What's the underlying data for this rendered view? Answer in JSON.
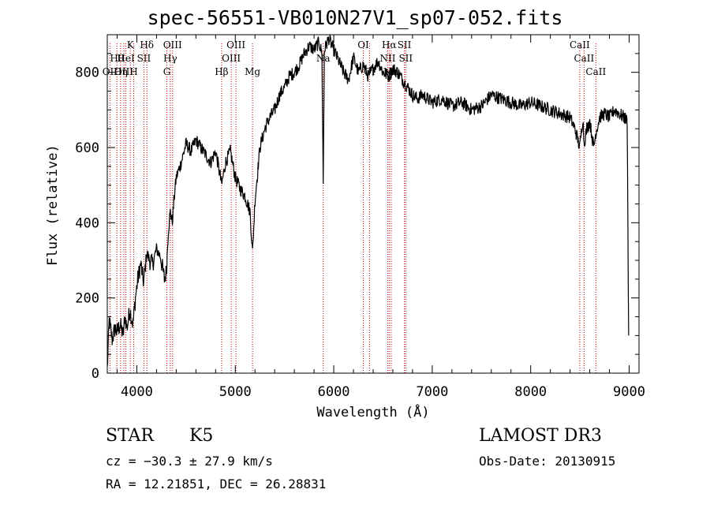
{
  "chart_data": {
    "type": "line",
    "title": "spec-56551-VB010N27V1_sp07-052.fits",
    "xlabel": "Wavelength (Å)",
    "ylabel": "Flux (relative)",
    "xlim": [
      3700,
      9100
    ],
    "ylim": [
      0,
      900
    ],
    "xticks": [
      4000,
      5000,
      6000,
      7000,
      8000,
      9000
    ],
    "yticks": [
      0,
      200,
      400,
      600,
      800
    ],
    "series": [
      {
        "name": "flux",
        "x": [
          3700,
          3720,
          3750,
          3780,
          3800,
          3830,
          3860,
          3880,
          3900,
          3930,
          3960,
          3990,
          4010,
          4040,
          4070,
          4100,
          4130,
          4160,
          4200,
          4240,
          4280,
          4300,
          4320,
          4340,
          4360,
          4380,
          4400,
          4450,
          4500,
          4550,
          4600,
          4650,
          4700,
          4750,
          4800,
          4850,
          4861,
          4900,
          4950,
          5000,
          5050,
          5100,
          5150,
          5175,
          5200,
          5250,
          5300,
          5350,
          5400,
          5450,
          5500,
          5550,
          5600,
          5650,
          5700,
          5750,
          5800,
          5850,
          5880,
          5893,
          5905,
          5950,
          6000,
          6050,
          6100,
          6150,
          6200,
          6250,
          6300,
          6350,
          6400,
          6450,
          6500,
          6563,
          6600,
          6650,
          6700,
          6750,
          6800,
          6850,
          6900,
          7000,
          7100,
          7200,
          7300,
          7400,
          7500,
          7600,
          7700,
          7800,
          7900,
          8000,
          8100,
          8200,
          8300,
          8400,
          8450,
          8498,
          8530,
          8542,
          8570,
          8600,
          8640,
          8662,
          8700,
          8750,
          8800,
          8850,
          8900,
          8950,
          8980,
          8995
        ],
        "y": [
          10,
          140,
          90,
          120,
          110,
          130,
          100,
          150,
          120,
          170,
          130,
          210,
          250,
          290,
          240,
          320,
          300,
          290,
          330,
          310,
          250,
          270,
          380,
          430,
          400,
          470,
          520,
          560,
          610,
          590,
          620,
          600,
          580,
          560,
          590,
          520,
          500,
          560,
          590,
          520,
          490,
          470,
          430,
          320,
          460,
          600,
          650,
          680,
          700,
          740,
          760,
          790,
          800,
          820,
          850,
          870,
          860,
          880,
          850,
          500,
          860,
          890,
          860,
          830,
          800,
          780,
          840,
          800,
          820,
          790,
          810,
          830,
          800,
          790,
          810,
          800,
          780,
          760,
          740,
          730,
          740,
          720,
          730,
          710,
          720,
          700,
          710,
          740,
          730,
          720,
          710,
          720,
          710,
          700,
          690,
          680,
          650,
          600,
          680,
          610,
          650,
          670,
          600,
          640,
          680,
          690,
          680,
          700,
          690,
          680,
          670,
          100
        ]
      }
    ],
    "line_markers": [
      {
        "label": "Hθ",
        "wavelength": 3798
      },
      {
        "label": "OII",
        "wavelength": 3727
      },
      {
        "label": "OIII",
        "wavelength": 3869
      },
      {
        "label": "HeI",
        "wavelength": 3889
      },
      {
        "label": "Hη",
        "wavelength": 3835
      },
      {
        "label": "K",
        "wavelength": 3934
      },
      {
        "label": "H",
        "wavelength": 3968
      },
      {
        "label": "SII",
        "wavelength": 4072
      },
      {
        "label": "Hδ",
        "wavelength": 4102
      },
      {
        "label": "OIII",
        "wavelength": 4363
      },
      {
        "label": "Hγ",
        "wavelength": 4340
      },
      {
        "label": "G",
        "wavelength": 4305
      },
      {
        "label": "Hβ",
        "wavelength": 4861
      },
      {
        "label": "OIII",
        "wavelength": 5007
      },
      {
        "label": "OIII",
        "wavelength": 4959
      },
      {
        "label": "Mg",
        "wavelength": 5175
      },
      {
        "label": "Na",
        "wavelength": 5893
      },
      {
        "label": "OI",
        "wavelength": 6300
      },
      {
        "label": "OI",
        "wavelength": 6363
      },
      {
        "label": "Hα",
        "wavelength": 6563
      },
      {
        "label": "NII",
        "wavelength": 6548
      },
      {
        "label": "NII",
        "wavelength": 6583
      },
      {
        "label": "SII",
        "wavelength": 6717
      },
      {
        "label": "SII",
        "wavelength": 6731
      },
      {
        "label": "CaII",
        "wavelength": 8498
      },
      {
        "label": "CaII",
        "wavelength": 8542
      },
      {
        "label": "CaII",
        "wavelength": 8662
      }
    ]
  },
  "info": {
    "object_class": "STAR",
    "subclass": "K5",
    "survey": "LAMOST DR3",
    "cz": "cz = −30.3 ± 27.9 km/s",
    "obs_date": "Obs-Date: 20130915",
    "coords": "RA =  12.21851, DEC =  26.28831"
  },
  "colors": {
    "marker_line": "#cc0000",
    "spectrum": "#000000"
  }
}
